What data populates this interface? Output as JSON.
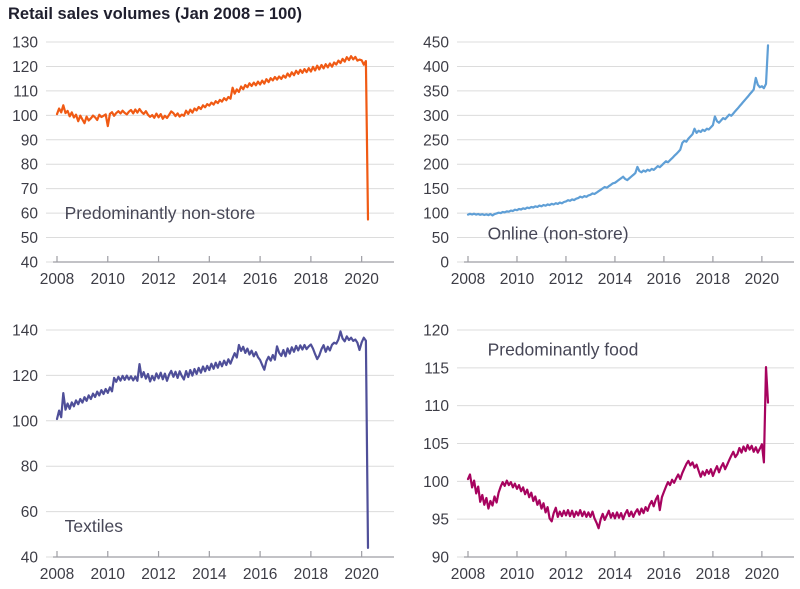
{
  "header": {
    "title": "Retail sales volumes (Jan 2008 = 100)"
  },
  "colors": {
    "background": "#ffffff",
    "title_text": "#1f1f2e",
    "tick_text": "#3d3d46",
    "series_label_text": "#474757",
    "gridline": "#dcdcdc",
    "axis": "#9e9ea4",
    "non_store_line": "#f05a14",
    "online_line": "#5f9fd6",
    "textiles_line": "#4f4f99",
    "food_line": "#a7035f"
  },
  "chart_data": [
    {
      "type": "line",
      "title": "Predominantly non-store",
      "label_anchor": {
        "x_year": 2008.3,
        "value": 57.5
      },
      "color_key": "non_store_line",
      "color": "#f05a14",
      "ylim": [
        40,
        130
      ],
      "ytick_step": 10,
      "xticks": [
        2008,
        2010,
        2012,
        2014,
        2016,
        2018,
        2020
      ],
      "x_start": 2008,
      "x_step_months": 1,
      "grid": true,
      "values": [
        100.5,
        102.8,
        101.2,
        104.1,
        100.9,
        101.8,
        99.6,
        101.2,
        99.1,
        100.3,
        97.6,
        99.9,
        98.3,
        96.8,
        99.5,
        97.9,
        98.8,
        99.9,
        99.2,
        98.1,
        100.2,
        99.3,
        99.8,
        100.4,
        95.6,
        100.6,
        101.3,
        99.8,
        100.9,
        101.7,
        100.8,
        101.9,
        101.0,
        100.4,
        101.5,
        102.2,
        100.8,
        102.4,
        101.1,
        102.6,
        101.4,
        100.6,
        101.7,
        100.2,
        99.4,
        100.1,
        99.0,
        100.7,
        99.2,
        100.5,
        98.6,
        99.8,
        98.9,
        100.2,
        101.6,
        100.9,
        99.7,
        100.8,
        99.5,
        100.3,
        99.8,
        101.9,
        100.6,
        102.3,
        101.1,
        102.8,
        102.0,
        103.4,
        102.6,
        104.1,
        103.3,
        104.6,
        104.0,
        105.2,
        104.4,
        105.8,
        105.0,
        106.3,
        105.6,
        107.0,
        106.2,
        107.5,
        106.8,
        111.3,
        108.9,
        110.6,
        109.6,
        111.8,
        110.7,
        112.4,
        111.5,
        113.1,
        112.0,
        113.4,
        112.3,
        113.8,
        112.6,
        114.2,
        113.0,
        114.8,
        113.6,
        115.2,
        114.3,
        115.7,
        114.6,
        115.9,
        114.9,
        116.3,
        115.4,
        117.1,
        115.9,
        117.6,
        116.4,
        118.2,
        117.0,
        118.6,
        117.4,
        118.9,
        117.7,
        119.3,
        117.9,
        119.8,
        118.4,
        120.3,
        118.8,
        120.6,
        119.2,
        120.9,
        119.6,
        121.2,
        119.9,
        121.6,
        120.8,
        122.4,
        121.4,
        123.1,
        122.0,
        123.8,
        122.6,
        124.2,
        122.9,
        123.9,
        122.4,
        122.8,
        122.5,
        120.7,
        122.2,
        57.4
      ]
    },
    {
      "type": "line",
      "title": "Online (non-store)",
      "label_anchor": {
        "x_year": 2008.8,
        "value": 46
      },
      "color_key": "online_line",
      "color": "#5f9fd6",
      "ylim": [
        0,
        450
      ],
      "ytick_step": 50,
      "xticks": [
        2008,
        2010,
        2012,
        2014,
        2016,
        2018,
        2020
      ],
      "x_start": 2008,
      "x_step_months": 1,
      "grid": true,
      "values": [
        97.0,
        98.5,
        97.2,
        98.8,
        96.9,
        98.1,
        96.5,
        97.8,
        96.2,
        97.5,
        96.0,
        98.2,
        95.3,
        97.9,
        99.4,
        100.8,
        100.1,
        102.2,
        101.4,
        103.6,
        102.8,
        105.1,
        104.3,
        107.0,
        106.0,
        108.4,
        107.3,
        109.8,
        108.6,
        111.2,
        110.1,
        112.6,
        111.4,
        113.9,
        112.7,
        115.3,
        114.0,
        116.5,
        115.2,
        117.8,
        116.4,
        119.0,
        117.6,
        120.2,
        118.8,
        121.5,
        120.0,
        122.8,
        124.0,
        126.5,
        125.2,
        128.0,
        126.6,
        129.4,
        130.8,
        133.5,
        132.0,
        134.8,
        133.4,
        136.2,
        137.5,
        140.3,
        139.0,
        142.0,
        144.8,
        147.7,
        150.6,
        153.5,
        152.0,
        155.0,
        157.9,
        160.9,
        162.0,
        165.1,
        168.2,
        171.4,
        174.5,
        170.0,
        167.5,
        171.0,
        174.6,
        178.2,
        181.8,
        194.5,
        186.0,
        183.5,
        187.2,
        185.0,
        188.8,
        186.6,
        190.5,
        188.3,
        192.2,
        196.1,
        194.0,
        198.0,
        202.0,
        206.1,
        204.0,
        208.2,
        212.4,
        216.6,
        220.8,
        225.1,
        229.4,
        243.7,
        248.0,
        246.0,
        252.4,
        256.8,
        261.2,
        272.7,
        264.1,
        268.6,
        266.0,
        270.5,
        268.0,
        272.6,
        271.0,
        275.5,
        280.0,
        297.6,
        288.1,
        285.0,
        289.7,
        294.4,
        292.0,
        296.8,
        301.5,
        299.0,
        303.8,
        308.6,
        313.4,
        318.2,
        323.1,
        328.0,
        332.9,
        337.8,
        342.8,
        347.7,
        352.7,
        376.6,
        362.6,
        357.5,
        359.5,
        355.4,
        364.3,
        443.0
      ]
    },
    {
      "type": "line",
      "title": "Textiles",
      "label_anchor": {
        "x_year": 2008.3,
        "value": 51
      },
      "color_key": "textiles_line",
      "color": "#4f4f99",
      "ylim": [
        40,
        140
      ],
      "ytick_step": 20,
      "xticks": [
        2008,
        2010,
        2012,
        2014,
        2016,
        2018,
        2020
      ],
      "x_start": 2008,
      "x_step_months": 1,
      "grid": true,
      "values": [
        100.8,
        104.5,
        101.6,
        112.2,
        104.9,
        107.6,
        105.3,
        108.1,
        106.4,
        109.0,
        107.3,
        109.6,
        108.0,
        110.4,
        108.8,
        111.2,
        109.6,
        112.0,
        110.5,
        112.8,
        111.2,
        113.5,
        111.8,
        114.0,
        112.3,
        114.7,
        113.0,
        118.9,
        117.2,
        119.4,
        117.7,
        119.8,
        118.0,
        119.9,
        118.2,
        119.6,
        117.8,
        119.5,
        117.6,
        125.0,
        119.2,
        121.4,
        118.6,
        120.6,
        117.3,
        119.8,
        117.9,
        120.9,
        118.7,
        121.2,
        118.3,
        120.8,
        117.6,
        120.3,
        122.0,
        119.4,
        121.6,
        118.9,
        121.8,
        119.8,
        118.2,
        121.9,
        119.3,
        122.4,
        119.9,
        122.8,
        120.6,
        123.3,
        121.2,
        123.9,
        121.8,
        124.2,
        122.4,
        125.1,
        122.9,
        125.6,
        123.4,
        126.0,
        124.0,
        126.5,
        124.6,
        127.1,
        125.2,
        127.6,
        129.8,
        127.9,
        133.4,
        130.8,
        132.6,
        129.9,
        131.8,
        129.2,
        130.9,
        128.4,
        130.2,
        128.0,
        126.8,
        124.6,
        122.5,
        126.3,
        128.2,
        126.5,
        129.0,
        126.9,
        132.8,
        130.0,
        128.6,
        131.2,
        128.4,
        131.9,
        129.6,
        132.4,
        130.4,
        133.0,
        131.0,
        133.2,
        131.4,
        133.4,
        131.6,
        132.8,
        133.6,
        131.8,
        129.4,
        127.2,
        128.8,
        131.6,
        133.3,
        130.4,
        132.6,
        131.0,
        133.5,
        134.4,
        134.0,
        135.8,
        139.4,
        136.2,
        135.0,
        137.2,
        135.6,
        136.6,
        135.2,
        135.8,
        134.4,
        131.2,
        134.6,
        136.6,
        135.3,
        44.0
      ]
    },
    {
      "type": "line",
      "title": "Predominantly food",
      "label_anchor": {
        "x_year": 2008.8,
        "value": 116.6
      },
      "color_key": "food_line",
      "color": "#a7035f",
      "ylim": [
        90,
        120
      ],
      "ytick_step": 5,
      "xticks": [
        2008,
        2010,
        2012,
        2014,
        2016,
        2018,
        2020
      ],
      "x_start": 2008,
      "x_step_months": 1,
      "grid": true,
      "values": [
        100.3,
        100.9,
        99.2,
        100.1,
        98.4,
        99.3,
        97.3,
        98.2,
        96.9,
        97.8,
        96.4,
        97.4,
        96.8,
        98.0,
        97.2,
        98.5,
        99.3,
        99.9,
        99.4,
        100.1,
        99.5,
        99.9,
        99.2,
        99.7,
        99.0,
        99.5,
        98.7,
        99.2,
        98.3,
        98.9,
        97.9,
        98.5,
        97.4,
        98.0,
        96.9,
        97.5,
        96.4,
        97.1,
        95.9,
        96.6,
        95.1,
        94.7,
        95.8,
        96.5,
        95.3,
        96.0,
        95.4,
        96.1,
        95.5,
        96.2,
        95.4,
        96.1,
        95.3,
        96.0,
        95.5,
        96.2,
        95.4,
        96.0,
        95.3,
        95.9,
        95.3,
        96.0,
        95.1,
        94.5,
        93.8,
        95.0,
        95.7,
        94.9,
        95.5,
        96.1,
        95.2,
        95.8,
        95.1,
        95.9,
        95.2,
        95.8,
        95.0,
        95.7,
        96.2,
        95.4,
        96.0,
        95.3,
        95.9,
        96.3,
        95.6,
        96.4,
        95.8,
        96.6,
        96.1,
        96.9,
        97.4,
        96.7,
        97.6,
        98.1,
        96.2,
        97.9,
        98.6,
        99.3,
        99.9,
        99.5,
        100.2,
        99.8,
        100.4,
        100.9,
        100.3,
        101.1,
        101.7,
        102.3,
        102.7,
        102.1,
        102.5,
        101.8,
        102.2,
        101.4,
        100.6,
        101.3,
        100.8,
        101.5,
        101.0,
        101.6,
        100.7,
        101.4,
        102.0,
        101.2,
        101.9,
        102.4,
        101.6,
        102.2,
        102.8,
        103.4,
        103.9,
        103.2,
        103.6,
        104.4,
        103.8,
        104.6,
        104.0,
        104.8,
        104.2,
        104.7,
        103.9,
        104.5,
        103.8,
        104.3,
        104.9,
        102.5,
        115.1,
        110.4
      ]
    }
  ]
}
